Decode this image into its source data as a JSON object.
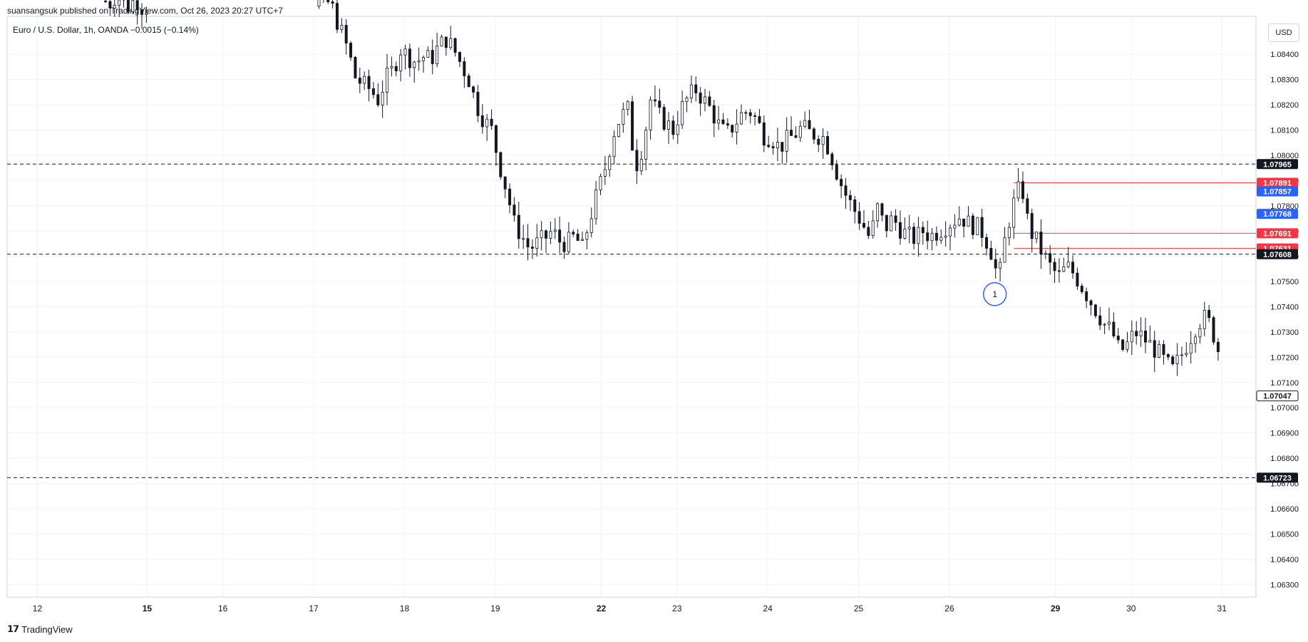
{
  "header": {
    "published": "suansangsuk published on TradingView.com, Oct 26, 2023 20:27 UTC+7",
    "symbol": "Euro / U.S. Dollar, 1h, OANDA  −0.0015 (−0.14%)"
  },
  "currency_button": "USD",
  "footer": {
    "logo_mark": "𝟭𝟳",
    "logo_text": "TradingView"
  },
  "chart_data": {
    "type": "candlestick",
    "x_labels": [
      {
        "label": "12",
        "bold": false,
        "t": 4
      },
      {
        "label": "15",
        "bold": true,
        "t": 18.5
      },
      {
        "label": "16",
        "bold": false,
        "t": 28.5
      },
      {
        "label": "17",
        "bold": false,
        "t": 40.5
      },
      {
        "label": "18",
        "bold": false,
        "t": 52.5
      },
      {
        "label": "19",
        "bold": false,
        "t": 64.5
      },
      {
        "label": "22",
        "bold": true,
        "t": 78.5
      },
      {
        "label": "23",
        "bold": false,
        "t": 88.5
      },
      {
        "label": "24",
        "bold": false,
        "t": 100.5
      },
      {
        "label": "25",
        "bold": false,
        "t": 112.5
      },
      {
        "label": "26",
        "bold": false,
        "t": 124.5
      },
      {
        "label": "29",
        "bold": true,
        "t": 138.5
      },
      {
        "label": "30",
        "bold": false,
        "t": 148.5
      },
      {
        "label": "31",
        "bold": false,
        "t": 160.5
      }
    ],
    "y_ticks": [
      "1.08400",
      "1.08300",
      "1.08200",
      "1.08100",
      "1.08000",
      "1.07900",
      "1.07800",
      "1.07700",
      "1.07600",
      "1.07500",
      "1.07400",
      "1.07300",
      "1.07200",
      "1.07100",
      "1.07000",
      "1.06900",
      "1.06800",
      "1.06700",
      "1.06600",
      "1.06500",
      "1.06400",
      "1.06300"
    ],
    "ylim": [
      1.0625,
      1.0855
    ],
    "price_series": [
      [
        13,
        1.0861
      ],
      [
        13.4,
        1.0859
      ],
      [
        14,
        1.0863
      ],
      [
        15,
        1.0862
      ],
      [
        16,
        1.0859
      ],
      [
        17,
        1.0862
      ],
      [
        18,
        1.0858
      ],
      [
        19,
        1.086
      ],
      [
        41,
        1.086
      ],
      [
        42,
        1.0862
      ],
      [
        43,
        1.0858
      ],
      [
        44,
        1.085
      ],
      [
        45,
        1.0842
      ],
      [
        46,
        1.0831
      ],
      [
        47,
        1.0828
      ],
      [
        48,
        1.0826
      ],
      [
        49,
        1.0822
      ],
      [
        50,
        1.083
      ],
      [
        51,
        1.0834
      ],
      [
        52,
        1.0842
      ],
      [
        53,
        1.0839
      ],
      [
        54,
        1.0837
      ],
      [
        55,
        1.0839
      ],
      [
        56,
        1.0838
      ],
      [
        57,
        1.0843
      ],
      [
        58,
        1.0846
      ],
      [
        59,
        1.0842
      ],
      [
        60,
        1.0836
      ],
      [
        61,
        1.083
      ],
      [
        62,
        1.082
      ],
      [
        63,
        1.0814
      ],
      [
        64,
        1.081
      ],
      [
        65,
        1.0797
      ],
      [
        66,
        1.0786
      ],
      [
        67,
        1.0773
      ],
      [
        68,
        1.0768
      ],
      [
        69,
        1.0763
      ],
      [
        70,
        1.0765
      ],
      [
        71,
        1.0767
      ],
      [
        72,
        1.077
      ],
      [
        73,
        1.0766
      ],
      [
        74,
        1.0765
      ],
      [
        75,
        1.0768
      ],
      [
        76,
        1.0763
      ],
      [
        77,
        1.0775
      ],
      [
        78,
        1.0785
      ],
      [
        79,
        1.0795
      ],
      [
        80,
        1.0808
      ],
      [
        81,
        1.0815
      ],
      [
        82,
        1.0818
      ],
      [
        83,
        1.0795
      ],
      [
        84,
        1.0804
      ],
      [
        85,
        1.0822
      ],
      [
        86,
        1.0816
      ],
      [
        87,
        1.0813
      ],
      [
        88,
        1.081
      ],
      [
        89,
        1.0818
      ],
      [
        90,
        1.0823
      ],
      [
        91,
        1.0826
      ],
      [
        92,
        1.0822
      ],
      [
        93,
        1.0818
      ],
      [
        94,
        1.0812
      ],
      [
        95,
        1.0808
      ],
      [
        96,
        1.0812
      ],
      [
        97,
        1.0816
      ],
      [
        98,
        1.0818
      ],
      [
        99,
        1.0814
      ],
      [
        100,
        1.0808
      ],
      [
        101,
        1.0807
      ],
      [
        102,
        1.0803
      ],
      [
        103,
        1.0806
      ],
      [
        104,
        1.0808
      ],
      [
        105,
        1.0811
      ],
      [
        106,
        1.0809
      ],
      [
        107,
        1.0808
      ],
      [
        108,
        1.0807
      ],
      [
        109,
        1.0799
      ],
      [
        110,
        1.079
      ],
      [
        111,
        1.0783
      ],
      [
        112,
        1.0778
      ],
      [
        113,
        1.0773
      ],
      [
        114,
        1.0767
      ],
      [
        115,
        1.0779
      ],
      [
        116,
        1.0771
      ],
      [
        117,
        1.0775
      ],
      [
        118,
        1.0771
      ],
      [
        119,
        1.0768
      ],
      [
        120,
        1.0767
      ],
      [
        121,
        1.077
      ],
      [
        122,
        1.0768
      ],
      [
        123,
        1.077
      ],
      [
        124,
        1.0772
      ],
      [
        125,
        1.0774
      ],
      [
        126,
        1.0776
      ],
      [
        127,
        1.0773
      ],
      [
        128,
        1.0772
      ],
      [
        129,
        1.0769
      ],
      [
        130,
        1.0762
      ],
      [
        131,
        1.075
      ],
      [
        132,
        1.077
      ],
      [
        133,
        1.0781
      ],
      [
        134,
        1.0789
      ],
      [
        135,
        1.0771
      ],
      [
        136,
        1.0766
      ],
      [
        137,
        1.076
      ],
      [
        138,
        1.0755
      ],
      [
        139,
        1.0752
      ],
      [
        140,
        1.0756
      ],
      [
        141,
        1.0753
      ],
      [
        142,
        1.0748
      ],
      [
        143,
        1.0743
      ],
      [
        144,
        1.0738
      ],
      [
        145,
        1.0733
      ],
      [
        146,
        1.073
      ],
      [
        147,
        1.0722
      ],
      [
        148,
        1.0725
      ],
      [
        149,
        1.073
      ],
      [
        150,
        1.0728
      ],
      [
        151,
        1.0725
      ],
      [
        152,
        1.0722
      ],
      [
        153,
        1.0718
      ],
      [
        154,
        1.0715
      ],
      [
        155,
        1.072
      ],
      [
        156,
        1.0726
      ],
      [
        157,
        1.0732
      ],
      [
        158,
        1.0736
      ],
      [
        159,
        1.0733
      ],
      [
        160,
        1.0723
      ]
    ],
    "horizontal_levels": [
      {
        "price": "1.07965",
        "value": 1.07965,
        "style": "dashed",
        "color": "#131722"
      },
      {
        "price": "1.07608",
        "value": 1.07608,
        "style": "dashed",
        "color": "#131722"
      },
      {
        "price": "1.06723",
        "value": 1.06723,
        "style": "dashed",
        "color": "#131722"
      },
      {
        "price": "1.07891",
        "value": 1.07891,
        "style": "solid",
        "color": "#f23645"
      },
      {
        "price": "1.07691",
        "value": 1.07691,
        "style": "solid",
        "color": "#f23645"
      },
      {
        "price": "1.07631",
        "value": 1.07631,
        "style": "solid",
        "color": "#f23645"
      }
    ],
    "price_tags": [
      {
        "label": "1.07965",
        "value": 1.07965,
        "bg": "#131722",
        "fg": "#ffffff"
      },
      {
        "label": "1.07891",
        "value": 1.07891,
        "bg": "#f23645",
        "fg": "#ffffff"
      },
      {
        "label": "1.07857",
        "value": 1.07857,
        "bg": "#2962ff",
        "fg": "#ffffff"
      },
      {
        "label": "1.07768",
        "value": 1.07768,
        "bg": "#2962ff",
        "fg": "#ffffff"
      },
      {
        "label": "1.07691",
        "value": 1.07691,
        "bg": "#f23645",
        "fg": "#ffffff"
      },
      {
        "label": "1.07631",
        "value": 1.07631,
        "bg": "#f23645",
        "fg": "#ffffff"
      },
      {
        "label": "1.07608",
        "value": 1.07608,
        "bg": "#131722",
        "fg": "#ffffff"
      },
      {
        "label": "1.07047",
        "value": 1.07047,
        "bg": "#ffffff",
        "fg": "#131722"
      },
      {
        "label": "1.06723",
        "value": 1.06723,
        "bg": "#131722",
        "fg": "#ffffff"
      }
    ],
    "annotation": {
      "label": "1",
      "t": 130.5,
      "value": 1.0745,
      "color": "#2962ff"
    },
    "grid": true,
    "colors": {
      "up": "#ffffff",
      "down": "#131722",
      "wick": "#131722",
      "grid": "#f0f3fa"
    }
  }
}
